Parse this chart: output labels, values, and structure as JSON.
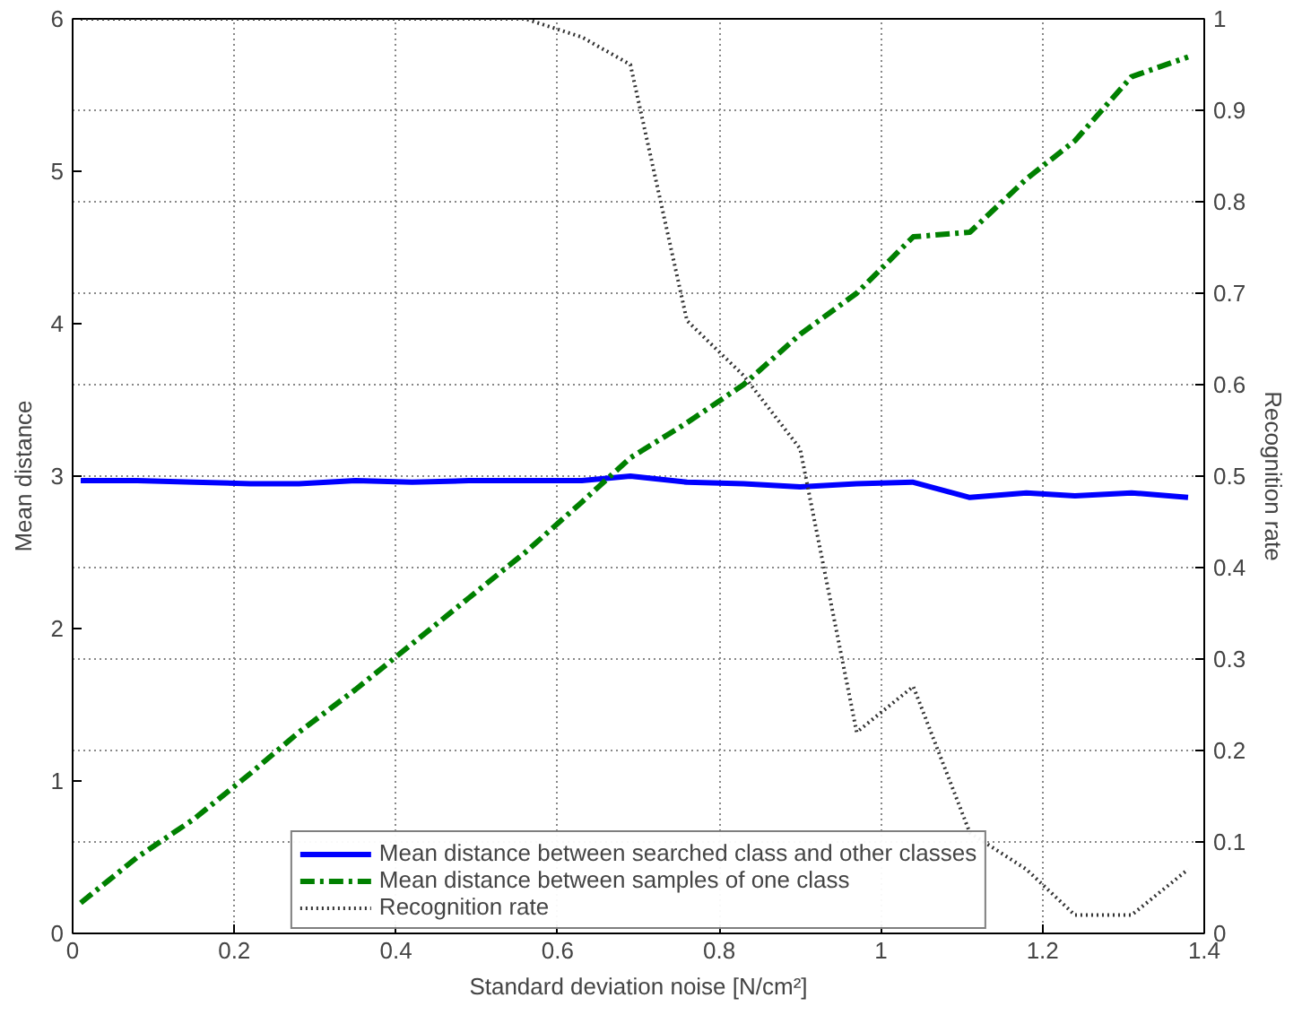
{
  "chart_data": {
    "type": "line",
    "xlabel": "Standard deviation noise [N/cm²]",
    "ylabel": "Mean distance",
    "y2label": "Recognition rate",
    "x": [
      0.01,
      0.08,
      0.15,
      0.22,
      0.28,
      0.35,
      0.42,
      0.49,
      0.56,
      0.63,
      0.69,
      0.76,
      0.83,
      0.9,
      0.97,
      1.04,
      1.11,
      1.18,
      1.24,
      1.31,
      1.38
    ],
    "series": [
      {
        "name": "Mean distance between searched class and other classes",
        "color": "#0000ff",
        "line_style": "solid",
        "values": [
          2.97,
          2.97,
          2.96,
          2.95,
          2.95,
          2.97,
          2.96,
          2.97,
          2.97,
          2.97,
          3.0,
          2.96,
          2.95,
          2.93,
          2.95,
          2.96,
          2.86,
          2.89,
          2.87,
          2.89,
          2.86
        ]
      },
      {
        "name": "Mean distance between samples of one class",
        "color": "#008000",
        "line_style": "dashdot",
        "values": [
          0.2,
          0.5,
          0.75,
          1.05,
          1.32,
          1.6,
          1.9,
          2.2,
          2.5,
          2.83,
          3.12,
          3.35,
          3.6,
          3.93,
          4.2,
          4.57,
          4.6,
          4.95,
          5.2,
          5.62,
          5.75
        ]
      },
      {
        "name": "Recognition rate",
        "color": "#333333",
        "line_style": "dotted",
        "axis": "y2",
        "values": [
          1,
          1,
          1,
          1,
          1,
          1,
          1,
          1,
          1,
          0.98,
          0.95,
          0.67,
          0.61,
          0.53,
          0.22,
          0.27,
          0.11,
          0.07,
          0.02,
          0.02,
          0.07
        ]
      }
    ],
    "xlim": [
      0,
      1.4
    ],
    "xticks": [
      0,
      0.2,
      0.4,
      0.6,
      0.8,
      1,
      1.2,
      1.4
    ],
    "ylim": [
      0,
      6
    ],
    "yticks": [
      0,
      1,
      2,
      3,
      4,
      5,
      6
    ],
    "y2lim": [
      0,
      1
    ],
    "y2ticks": [
      0,
      0.1,
      0.2,
      0.3,
      0.4,
      0.5,
      0.6,
      0.7,
      0.8,
      0.9,
      1
    ],
    "grid": true,
    "legend": "bottom"
  }
}
